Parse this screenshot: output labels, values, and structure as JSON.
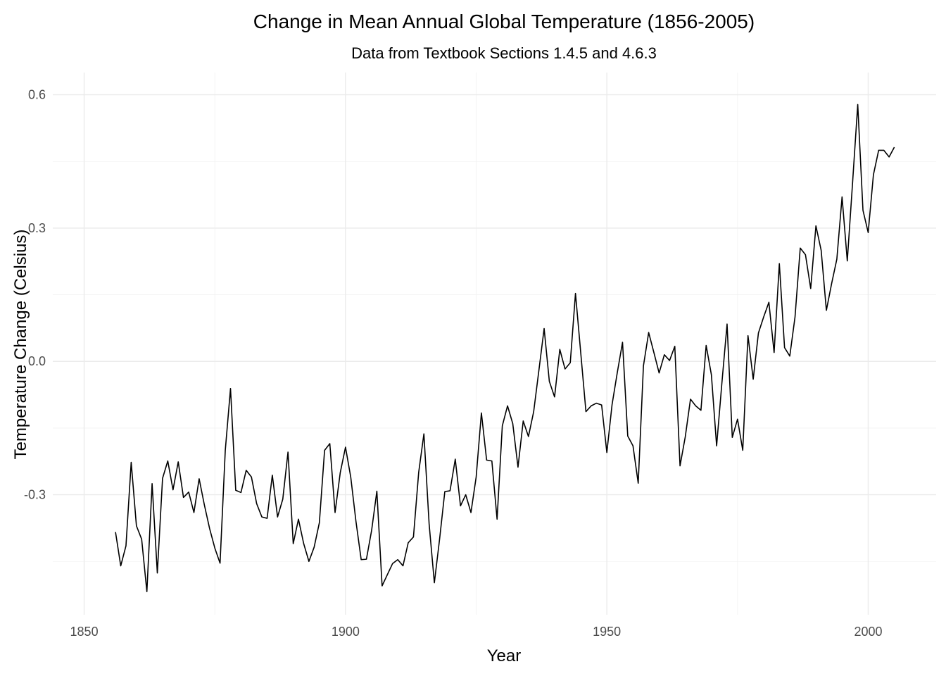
{
  "chart_data": {
    "type": "line",
    "title": "Change in Mean Annual Global Temperature (1856-2005)",
    "subtitle": "Data from Textbook Sections 1.4.5 and 4.6.3",
    "xlabel": "Year",
    "ylabel": "Temperature Change (Celsius)",
    "xlim": [
      1844,
      2013
    ],
    "ylim": [
      -0.57,
      0.65
    ],
    "x_ticks": [
      1850,
      1900,
      1950,
      2000
    ],
    "x_tick_labels": [
      "1850",
      "1900",
      "1950",
      "2000"
    ],
    "x_minor_ticks": [
      1875,
      1925,
      1975
    ],
    "y_ticks": [
      -0.3,
      0.0,
      0.3,
      0.6
    ],
    "y_tick_labels": [
      "-0.3",
      "0.0",
      "0.3",
      "0.6"
    ],
    "y_minor_ticks": [
      -0.45,
      -0.15,
      0.15,
      0.45
    ],
    "grid": true,
    "line_color": "#000000",
    "x": [
      1856,
      1857,
      1858,
      1859,
      1860,
      1861,
      1862,
      1863,
      1864,
      1865,
      1866,
      1867,
      1868,
      1869,
      1870,
      1871,
      1872,
      1873,
      1874,
      1875,
      1876,
      1877,
      1878,
      1879,
      1880,
      1881,
      1882,
      1883,
      1884,
      1885,
      1886,
      1887,
      1888,
      1889,
      1890,
      1891,
      1892,
      1893,
      1894,
      1895,
      1896,
      1897,
      1898,
      1899,
      1900,
      1901,
      1902,
      1903,
      1904,
      1905,
      1906,
      1907,
      1908,
      1909,
      1910,
      1911,
      1912,
      1913,
      1914,
      1915,
      1916,
      1917,
      1918,
      1919,
      1920,
      1921,
      1922,
      1923,
      1924,
      1925,
      1926,
      1927,
      1928,
      1929,
      1930,
      1931,
      1932,
      1933,
      1934,
      1935,
      1936,
      1937,
      1938,
      1939,
      1940,
      1941,
      1942,
      1943,
      1944,
      1945,
      1946,
      1947,
      1948,
      1949,
      1950,
      1951,
      1952,
      1953,
      1954,
      1955,
      1956,
      1957,
      1958,
      1959,
      1960,
      1961,
      1962,
      1963,
      1964,
      1965,
      1966,
      1967,
      1968,
      1969,
      1970,
      1971,
      1972,
      1973,
      1974,
      1975,
      1976,
      1977,
      1978,
      1979,
      1980,
      1981,
      1982,
      1983,
      1984,
      1985,
      1986,
      1987,
      1988,
      1989,
      1990,
      1991,
      1992,
      1993,
      1994,
      1995,
      1996,
      1997,
      1998,
      1999,
      2000,
      2001,
      2002,
      2003,
      2004,
      2005
    ],
    "y": [
      -0.384,
      -0.46,
      -0.415,
      -0.227,
      -0.37,
      -0.4,
      -0.518,
      -0.275,
      -0.476,
      -0.263,
      -0.224,
      -0.289,
      -0.226,
      -0.306,
      -0.294,
      -0.34,
      -0.264,
      -0.323,
      -0.376,
      -0.42,
      -0.454,
      -0.2,
      -0.061,
      -0.29,
      -0.295,
      -0.245,
      -0.26,
      -0.32,
      -0.35,
      -0.353,
      -0.256,
      -0.35,
      -0.31,
      -0.204,
      -0.41,
      -0.355,
      -0.41,
      -0.45,
      -0.418,
      -0.363,
      -0.2,
      -0.185,
      -0.34,
      -0.25,
      -0.193,
      -0.26,
      -0.36,
      -0.446,
      -0.445,
      -0.38,
      -0.292,
      -0.505,
      -0.48,
      -0.455,
      -0.446,
      -0.46,
      -0.408,
      -0.395,
      -0.25,
      -0.163,
      -0.366,
      -0.498,
      -0.4,
      -0.293,
      -0.291,
      -0.22,
      -0.325,
      -0.3,
      -0.34,
      -0.26,
      -0.116,
      -0.222,
      -0.224,
      -0.355,
      -0.145,
      -0.1,
      -0.14,
      -0.238,
      -0.134,
      -0.169,
      -0.113,
      -0.02,
      0.074,
      -0.045,
      -0.08,
      0.027,
      -0.017,
      -0.003,
      0.153,
      0.02,
      -0.113,
      -0.1,
      -0.094,
      -0.098,
      -0.205,
      -0.097,
      -0.025,
      0.043,
      -0.168,
      -0.19,
      -0.274,
      -0.01,
      0.065,
      0.02,
      -0.026,
      0.015,
      0.002,
      0.034,
      -0.235,
      -0.17,
      -0.085,
      -0.1,
      -0.11,
      0.036,
      -0.03,
      -0.19,
      -0.05,
      0.084,
      -0.171,
      -0.13,
      -0.2,
      0.058,
      -0.04,
      0.064,
      0.1,
      0.133,
      0.02,
      0.22,
      0.031,
      0.012,
      0.1,
      0.255,
      0.24,
      0.164,
      0.305,
      0.25,
      0.115,
      0.175,
      0.23,
      0.37,
      0.226,
      0.4,
      0.578,
      0.34,
      0.29,
      0.42,
      0.475,
      0.475,
      0.46,
      0.482
    ]
  }
}
